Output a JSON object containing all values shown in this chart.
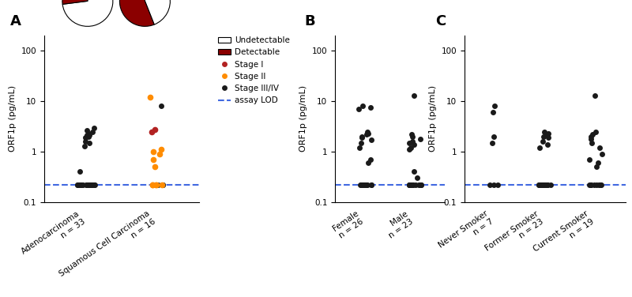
{
  "lod": 0.22,
  "panel_A": {
    "label": "A",
    "adeno_black": [
      0.22,
      0.22,
      0.22,
      0.22,
      0.22,
      0.22,
      0.22,
      0.22,
      0.22,
      0.22,
      0.22,
      0.22,
      0.22,
      0.22,
      0.22,
      0.22,
      0.22,
      0.22,
      0.22,
      0.22,
      0.22,
      0.4,
      1.3,
      1.5,
      1.6,
      1.9,
      2.0,
      2.1,
      2.1,
      2.3,
      2.5,
      2.6,
      2.9
    ],
    "squam_black": [
      0.22,
      0.22,
      0.22,
      8.0
    ],
    "squam_red": [
      2.5,
      2.7
    ],
    "squam_orange": [
      0.22,
      0.22,
      0.22,
      0.22,
      0.22,
      0.5,
      0.7,
      0.9,
      1.0,
      1.1,
      12.0
    ],
    "pie1_detectable": 0.27,
    "pie2_detectable": 0.56
  },
  "panel_B": {
    "label": "B",
    "female_black": [
      0.22,
      0.22,
      0.22,
      0.22,
      0.22,
      0.22,
      0.22,
      0.22,
      0.22,
      0.22,
      0.22,
      0.22,
      0.22,
      0.6,
      0.7,
      1.2,
      1.5,
      1.7,
      1.9,
      2.0,
      2.2,
      2.3,
      2.5,
      7.0,
      7.5,
      8.0
    ],
    "male_black": [
      0.22,
      0.22,
      0.22,
      0.22,
      0.22,
      0.22,
      0.22,
      0.22,
      0.22,
      0.22,
      0.22,
      0.22,
      0.3,
      0.4,
      1.1,
      1.2,
      1.4,
      1.5,
      1.6,
      1.8,
      2.0,
      2.2,
      13.0
    ]
  },
  "panel_C": {
    "label": "C",
    "never_black": [
      0.22,
      0.22,
      0.22,
      1.5,
      2.0,
      6.0,
      8.0
    ],
    "former_black": [
      0.22,
      0.22,
      0.22,
      0.22,
      0.22,
      0.22,
      0.22,
      0.22,
      0.22,
      0.22,
      0.22,
      0.22,
      0.22,
      0.22,
      0.22,
      1.2,
      1.4,
      1.6,
      1.9,
      2.0,
      2.1,
      2.3,
      2.5
    ],
    "current_black": [
      0.22,
      0.22,
      0.22,
      0.22,
      0.22,
      0.22,
      0.22,
      0.22,
      0.5,
      0.6,
      0.7,
      0.9,
      1.2,
      1.5,
      1.8,
      2.0,
      2.2,
      2.5,
      13.0
    ]
  },
  "ylim": [
    0.1,
    200
  ],
  "yticks": [
    0.1,
    1,
    10,
    100
  ],
  "ytick_labels": [
    "0.1",
    "1",
    "10",
    "100"
  ],
  "colors": {
    "stage1": "#B22222",
    "stage2": "#FF8C00",
    "stage34": "#1a1a1a",
    "lod_line": "#4169E1",
    "pie_detectable": "#8B0000",
    "pie_undetectable": "#FFFFFF"
  }
}
